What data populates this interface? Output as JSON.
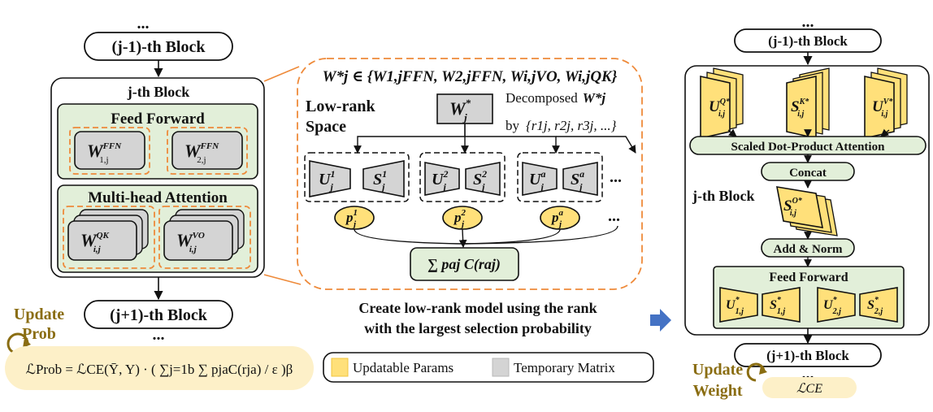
{
  "colors": {
    "green_fill": "#e2efd9",
    "yellow_fill": "#ffe07a",
    "yellow_dark": "#f2c53d",
    "gray_fill": "#d4d4d4",
    "orange": "#ee8a3a",
    "arrow_blue": "#4472c4",
    "olive_text": "#8a6d12",
    "cream": "#fdf0c8"
  },
  "left": {
    "ellipsis_top": "...",
    "prev_block": "(j-1)-th Block",
    "block_title": "j-th Block",
    "ffn_title": "Feed Forward",
    "w1": "W",
    "w1_sup": "FFN",
    "w1_sub": "1,j",
    "w2": "W",
    "w2_sup": "FFN",
    "w2_sub": "2,j",
    "mha_title": "Multi-head Attention",
    "wqk": "W",
    "wqk_sup": "QK",
    "wqk_sub": "i,j",
    "wvo": "W",
    "wvo_sup": "VO",
    "wvo_sub": "i,j",
    "next_block": "(j+1)-th Block",
    "ellipsis_bottom": "...",
    "update_prob_line1": "Update",
    "update_prob_line2": "Prob",
    "loss_prob": "ℒProb = ℒCE(Ȳ, Y) · ( ∑j=1b ∑ pjaC(rja) / ε )β"
  },
  "middle": {
    "set_formula": "W*j ∈ {W1,jFFN, W2,jFFN, Wi,jVO, Wi,jQK}",
    "lowrank_line1": "Low-rank",
    "lowrank_line2": "Space",
    "wstar": "W",
    "wstar_sup": "*",
    "wstar_sub": "j",
    "decomposed": "Decomposed",
    "decomposed_w": "W*j",
    "by": "by",
    "rank_set": "{r1j, r2j, r3j, ...}",
    "pairs": [
      {
        "u": "U",
        "u_sup": "1",
        "s": "S",
        "s_sup": "1",
        "p": "p",
        "p_sup": "1"
      },
      {
        "u": "U",
        "u_sup": "2",
        "s": "S",
        "s_sup": "2",
        "p": "p",
        "p_sup": "2"
      },
      {
        "u": "U",
        "u_sup": "a",
        "s": "S",
        "s_sup": "a",
        "p": "p",
        "p_sup": "a"
      }
    ],
    "sub_j": "j",
    "ellipsis_pairs": "...",
    "ellipsis_probs": "...",
    "sum_formula": "∑ paj C(raj)",
    "caption_line1": "Create low-rank model using the rank",
    "caption_line2": "with the largest selection probability",
    "legend_updatable": "Updatable Params",
    "legend_temporary": "Temporary Matrix"
  },
  "right": {
    "ellipsis_top": "...",
    "prev_block": "(j-1)-th Block",
    "uq": "U",
    "uq_sup": "Q*",
    "uq_sub": "i,j",
    "sk": "S",
    "sk_sup": "K*",
    "sk_sub": "i,j",
    "uv": "U",
    "uv_sup": "V*",
    "uv_sub": "i,j",
    "sdpa": "Scaled Dot-Product Attention",
    "concat": "Concat",
    "block_label": "j-th Block",
    "so": "S",
    "so_sup": "O*",
    "so_sub": "i,j",
    "add_norm": "Add & Norm",
    "ffn_title": "Feed Forward",
    "u1": "U",
    "u1_sup": "*",
    "u1_sub": "1,j",
    "s1": "S",
    "s1_sup": "*",
    "s1_sub": "1,j",
    "u2": "U",
    "u2_sup": "*",
    "u2_sub": "2,j",
    "s2": "S",
    "s2_sup": "*",
    "s2_sub": "2,j",
    "next_block": "(j+1)-th Block",
    "ellipsis_bottom": "...",
    "update_weight_line1": "Update",
    "update_weight_line2": "Weight",
    "loss_ce": "ℒCE"
  }
}
